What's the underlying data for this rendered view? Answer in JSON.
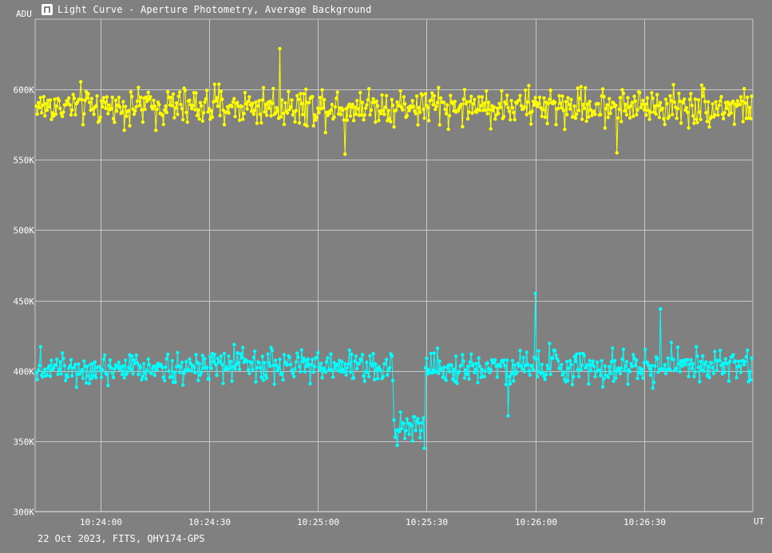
{
  "window": {
    "title": "Light Curve - Aperture Photometry, Average Background",
    "icon": "light-curve-app-icon"
  },
  "footer": "22 Oct 2023, FITS, QHY174-GPS",
  "colors": {
    "background": "#808080",
    "grid": "#c8c8c8",
    "series_target": "#ffff00",
    "series_comparison": "#00ffff",
    "text": "#ffffff"
  },
  "chart_data": {
    "type": "line",
    "ylabel": "ADU",
    "xlabel": "UT",
    "ylim": [
      300000,
      650000
    ],
    "xlim_seconds_of_day": [
      37422,
      37620
    ],
    "grid": true,
    "y_ticks": [
      {
        "value": 300000,
        "label": "300K"
      },
      {
        "value": 350000,
        "label": "350K"
      },
      {
        "value": 400000,
        "label": "400K"
      },
      {
        "value": 450000,
        "label": "450K"
      },
      {
        "value": 500000,
        "label": "500K"
      },
      {
        "value": 550000,
        "label": "550K"
      },
      {
        "value": 600000,
        "label": "600K"
      }
    ],
    "x_ticks": [
      {
        "value": 37440,
        "label": "10:24:00"
      },
      {
        "value": 37470,
        "label": "10:24:30"
      },
      {
        "value": 37500,
        "label": "10:25:00"
      },
      {
        "value": 37530,
        "label": "10:25:30"
      },
      {
        "value": 37560,
        "label": "10:26:00"
      },
      {
        "value": 37590,
        "label": "10:26:30"
      }
    ],
    "series": [
      {
        "key": "upper",
        "mean": 588000,
        "scatter": 9000,
        "features": [
          {
            "t": 37489.5,
            "value": 629000
          },
          {
            "t": 37507.5,
            "value": 554000
          },
          {
            "t": 37582.5,
            "value": 555000
          }
        ]
      },
      {
        "key": "lower",
        "mean": 403000,
        "scatter": 8000,
        "features": [
          {
            "t": 37515.0,
            "value": 404000,
            "range": [
              37515,
              37522
            ],
            "dip": false
          },
          {
            "t": 37521.0,
            "value": 360000,
            "range": [
              37521.0,
              37529.5
            ],
            "dip": true
          },
          {
            "t": 37529.5,
            "value": 345000
          },
          {
            "t": 37560.0,
            "value": 455000
          },
          {
            "t": 37552.5,
            "value": 368000
          },
          {
            "t": 37594.5,
            "value": 444000
          }
        ]
      }
    ],
    "sample_interval_s": 0.3
  }
}
